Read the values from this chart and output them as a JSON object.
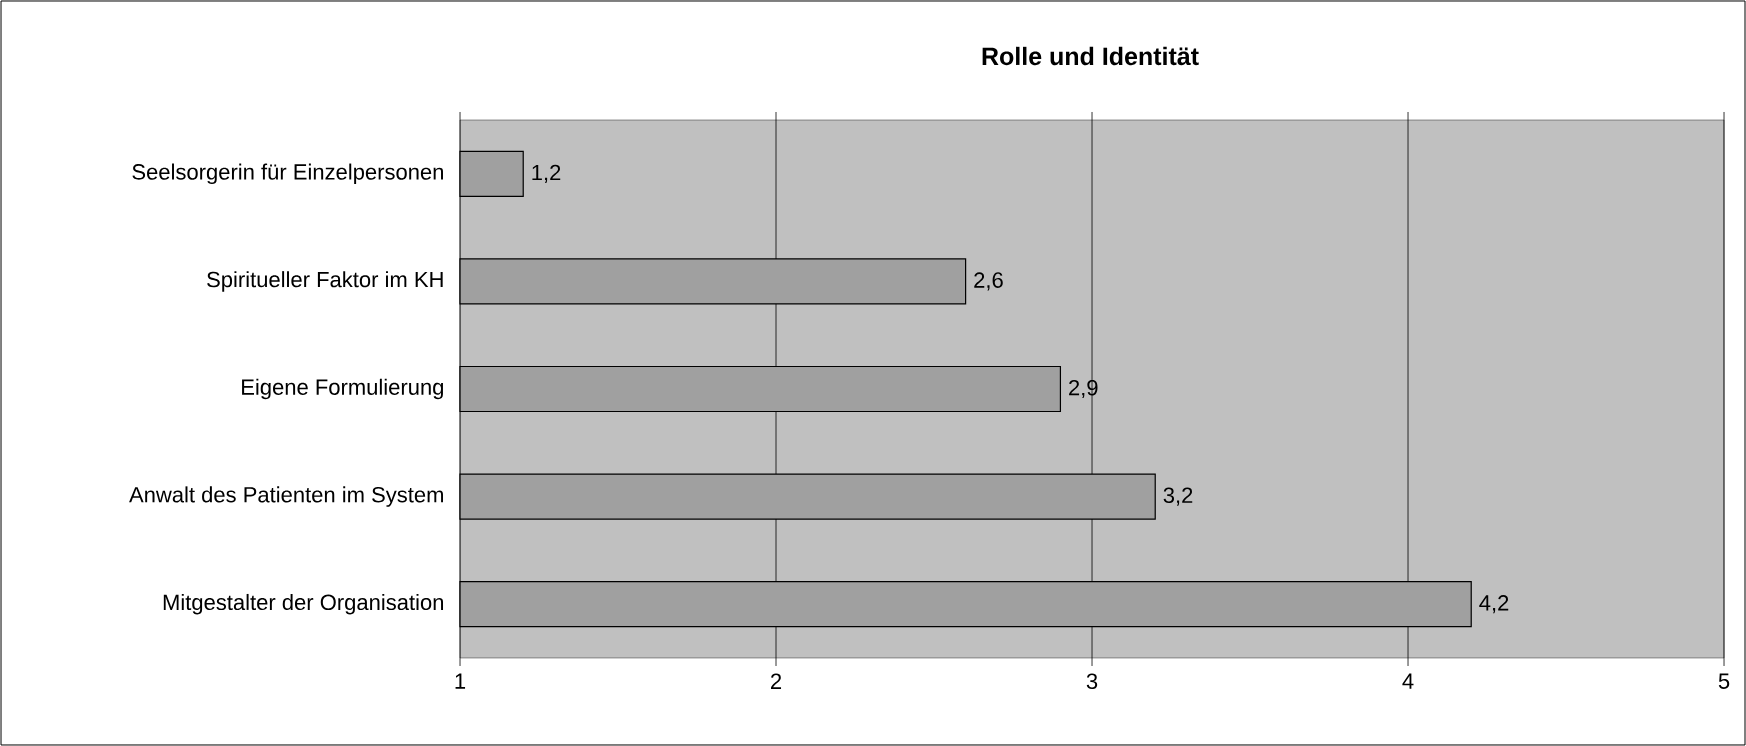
{
  "chart_data": {
    "type": "bar",
    "orientation": "horizontal",
    "title": "Rolle und Identität",
    "categories": [
      "Seelsorgerin für Einzelpersonen",
      "Spiritueller Faktor im KH",
      "Eigene Formulierung",
      "Anwalt des Patienten im System",
      "Mitgestalter der Organisation"
    ],
    "values": [
      1.2,
      2.6,
      2.9,
      3.2,
      4.2
    ],
    "value_labels": [
      "1,2",
      "2,6",
      "2,9",
      "3,2",
      "4,2"
    ],
    "color": "#a0a0a0",
    "xlim": [
      1,
      5
    ],
    "xticks": [
      1,
      2,
      3,
      4,
      5
    ],
    "grid": "x"
  }
}
